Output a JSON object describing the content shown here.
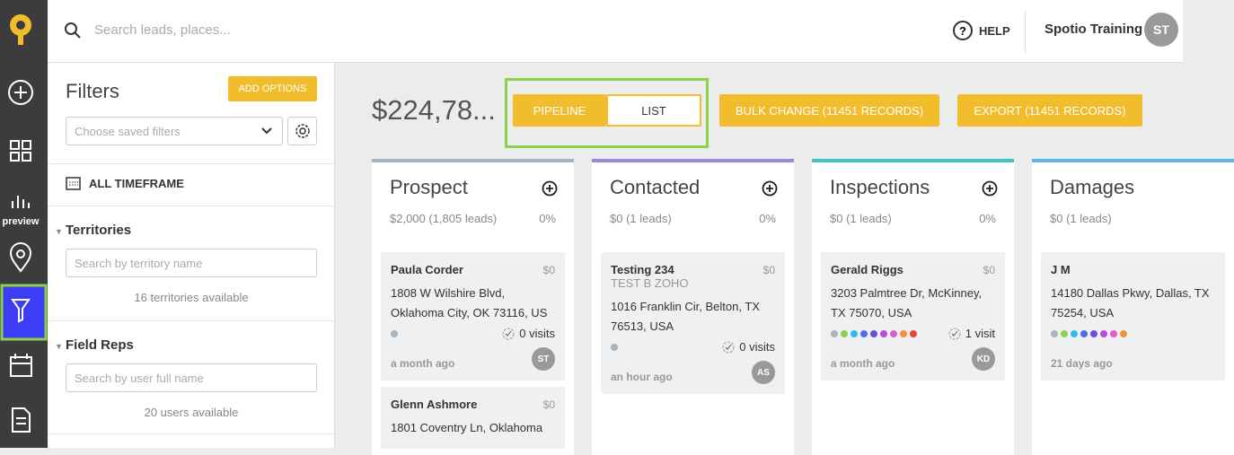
{
  "header": {
    "search_placeholder": "Search leads, places...",
    "help": "HELP",
    "user_name": "Spotio Training",
    "user_initials": "ST"
  },
  "sidebar": {
    "preview": "preview"
  },
  "filters": {
    "title": "Filters",
    "add_options": "ADD OPTIONS",
    "saved_placeholder": "Choose saved filters",
    "timeframe": "ALL TIMEFRAME",
    "territories": {
      "title": "Territories",
      "placeholder": "Search by territory name",
      "available": "16 territories available"
    },
    "field_reps": {
      "title": "Field Reps",
      "placeholder": "Search by user full name",
      "available": "20 users available"
    }
  },
  "toolbar": {
    "total": "$224,78...",
    "pipeline": "PIPELINE",
    "list": "LIST",
    "bulk_change": "BULK CHANGE (11451 RECORDS)",
    "export": "EXPORT (11451 RECORDS)"
  },
  "columns": [
    {
      "title": "Prospect",
      "summary": "$2,000 (1,805 leads)",
      "percent": "0%",
      "color": "#a9b3bb",
      "cards": [
        {
          "name": "Paula Corder",
          "amount": "$0",
          "address": "1808 W Wilshire Blvd, Oklahoma City, OK 73116, US",
          "visits": "0 visits",
          "time": "a month ago",
          "initials": "ST",
          "dots": [
            "#a9b3bb"
          ]
        },
        {
          "name": "Glenn Ashmore",
          "amount": "$0",
          "address": "1801 Coventry Ln, Oklahoma"
        }
      ]
    },
    {
      "title": "Contacted",
      "summary": "$0 (1 leads)",
      "percent": "0%",
      "color": "#9b87e0",
      "cards": [
        {
          "name": "Testing 234",
          "sub": "TEST B ZOHO",
          "amount": "$0",
          "address": "1016 Franklin Cir, Belton, TX 76513, USA",
          "visits": "0 visits",
          "time": "an hour ago",
          "initials": "AS",
          "dots": [
            "#a9b3bb"
          ]
        }
      ]
    },
    {
      "title": "Inspections",
      "summary": "$0 (1 leads)",
      "percent": "0%",
      "color": "#3ec6c4",
      "cards": [
        {
          "name": "Gerald Riggs",
          "amount": "$0",
          "address": "3203 Palmtree Dr, McKinney, TX 75070, USA",
          "visits": "1 visit",
          "time": "a month ago",
          "initials": "KD",
          "dots": [
            "#a9b3bb",
            "#8bd14f",
            "#35b7e8",
            "#4f6ee8",
            "#6a4ee0",
            "#b24ee0",
            "#e05ac8",
            "#f0923a",
            "#e8463c"
          ]
        }
      ]
    },
    {
      "title": "Damages",
      "summary": "$0 (1 leads)",
      "color": "#5bb8f0",
      "cards": [
        {
          "name": "J M",
          "address": "14180 Dallas Pkwy, Dallas, TX 75254, USA",
          "time": "21 days ago",
          "dots": [
            "#a9b3bb",
            "#8bd14f",
            "#35b7e8",
            "#4f6ee8",
            "#6a4ee0",
            "#b24ee0",
            "#e05ac8",
            "#f0923a"
          ]
        }
      ]
    }
  ]
}
